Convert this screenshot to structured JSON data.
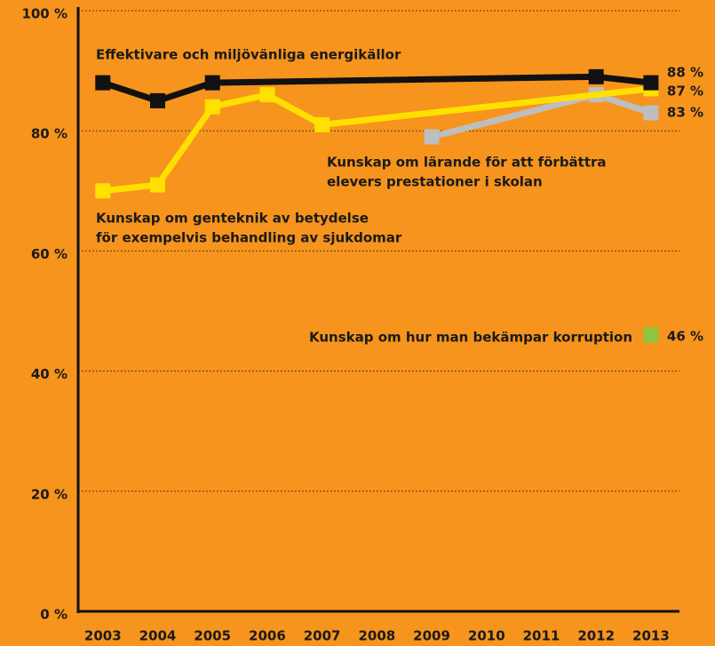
{
  "chart_data": {
    "type": "line",
    "xlim": [
      2002.55,
      2013.52
    ],
    "xticks": [
      2003,
      2004,
      2005,
      2006,
      2007,
      2008,
      2009,
      2010,
      2011,
      2012,
      2013
    ],
    "ylim": [
      0,
      100
    ],
    "yticks": [
      {
        "value": 0,
        "label": "0 %"
      },
      {
        "value": 20,
        "label": "20 %"
      },
      {
        "value": 40,
        "label": "40 %"
      },
      {
        "value": 60,
        "label": "60 %"
      },
      {
        "value": 80,
        "label": "80 %"
      },
      {
        "value": 100,
        "label": "100 %"
      }
    ],
    "grid": true,
    "series": [
      {
        "name": [
          "Effektivare och miljövänliga energikällor"
        ],
        "color": "#111111",
        "x": [
          2003,
          2004,
          2005,
          2012,
          2013
        ],
        "values": [
          88,
          85,
          88,
          89,
          88
        ],
        "value_labels": [
          null,
          null,
          null,
          null,
          "88 %"
        ]
      },
      {
        "name": [
          "Kunskap om genteknik av betydelse",
          "för exempelvis behandling av sjukdomar"
        ],
        "color": "#ffe000",
        "x": [
          2003,
          2004,
          2005,
          2006,
          2007,
          2013
        ],
        "values": [
          70,
          71,
          84,
          86,
          81,
          87
        ],
        "value_labels": [
          null,
          null,
          null,
          null,
          null,
          "87 %"
        ]
      },
      {
        "name": [
          "Kunskap om lärande för att förbättra",
          "elevers prestationer i skolan"
        ],
        "color": "#bcbec0",
        "x": [
          2009,
          2012,
          2013
        ],
        "values": [
          79,
          86,
          83
        ],
        "value_labels": [
          null,
          null,
          "83 %"
        ]
      },
      {
        "name": [
          "Kunskap om hur man bekämpar korruption"
        ],
        "color": "#8dc63f",
        "x": [
          2013
        ],
        "values": [
          46
        ],
        "value_labels": [
          "46 %"
        ]
      }
    ]
  }
}
